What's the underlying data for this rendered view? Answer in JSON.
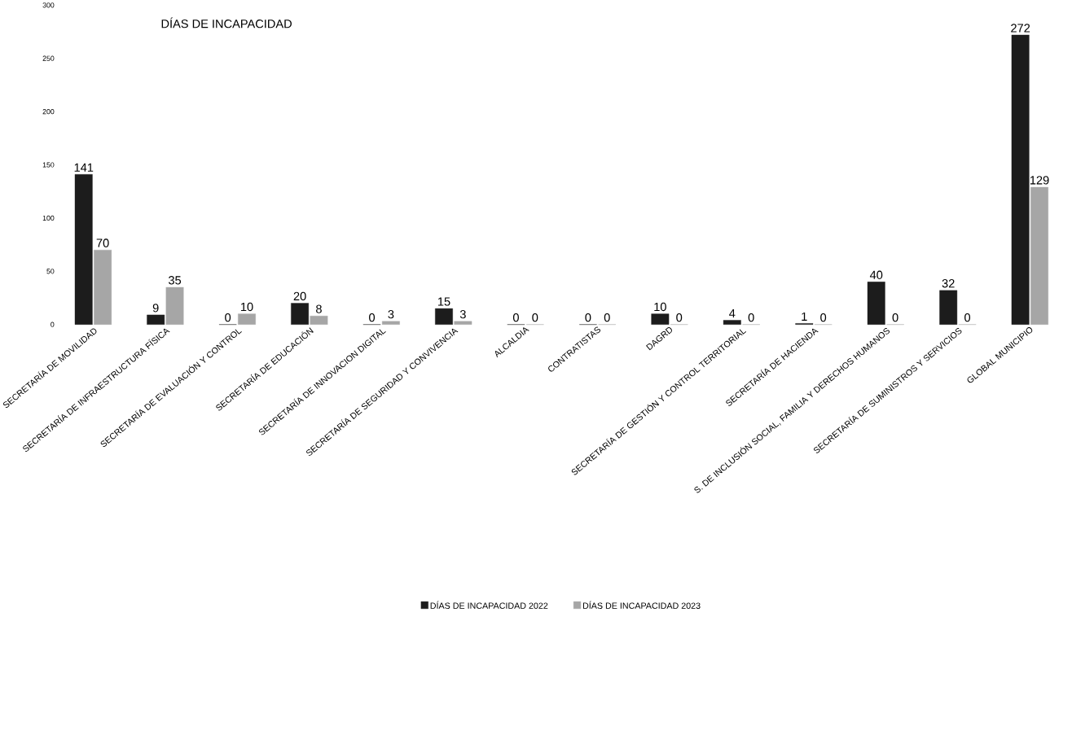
{
  "chart_data": {
    "type": "bar",
    "title": "DÍAS DE INCAPACIDAD",
    "categories": [
      "SECRETARÍA DE MOVILIDAD",
      "SECRETARÍA DE INFRAESTRUCTURA FÍSICA",
      "SECRETARÍA DE EVALUACIÓN Y CONTROL",
      "SECRETARÍA DE EDUCACIÓN",
      "SECRETARÍA DE INNOVACION DIGITAL",
      "SECRETARÍA DE SEGURIDAD Y CONVIVENCIA",
      "ALCALDIA",
      "CONTRATISTAS",
      "DAGRD",
      "SECRETARÍA DE GESTIÓN Y CONTROL TERRITORIAL",
      "SECRETARÍA DE HACIENDA",
      "S. DE INCLUSIÓN SOCIAL, FAMILIA Y DERECHOS HUMANOS",
      "SECRETARÍA DE SUMINISTROS Y SERVICIOS",
      "GLOBAL MUNICIPIO"
    ],
    "series": [
      {
        "name": "DÍAS DE INCAPACIDAD 2022",
        "color": "#1c1c1c",
        "values": [
          141,
          9,
          0,
          20,
          0,
          15,
          0,
          0,
          10,
          4,
          1,
          40,
          32,
          272
        ]
      },
      {
        "name": "DÍAS DE INCAPACIDAD 2023",
        "color": "#a6a6a6",
        "values": [
          70,
          35,
          10,
          8,
          3,
          3,
          0,
          0,
          0,
          0,
          0,
          0,
          0,
          129
        ]
      }
    ],
    "ylim": [
      0,
      300
    ],
    "yticks": [
      0,
      50,
      100,
      150,
      200,
      250,
      300
    ],
    "data_labels": true,
    "legend": "bottom",
    "grid": false
  }
}
